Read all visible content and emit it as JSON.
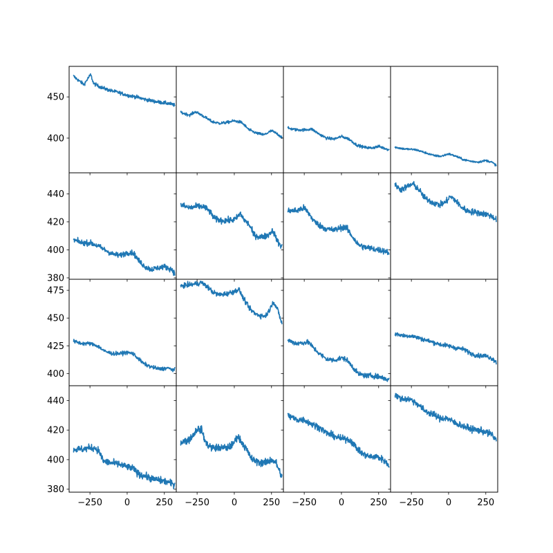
{
  "chart_data": {
    "type": "line",
    "layout": {
      "rows": 4,
      "cols": 4,
      "sharex": true,
      "sharey": "row"
    },
    "color": "#1f77b4",
    "xlim": [
      -390,
      330
    ],
    "xticks": [
      -250,
      0,
      250
    ],
    "xtick_labels": [
      "−250",
      "0",
      "250"
    ],
    "rows": [
      {
        "ylim": [
          358,
          487
        ],
        "yticks": [
          400,
          450
        ],
        "ytick_labels": [
          "400",
          "450"
        ]
      },
      {
        "ylim": [
          379,
          455
        ],
        "yticks": [
          380,
          400,
          420,
          440
        ],
        "ytick_labels": [
          "380",
          "400",
          "420",
          "440"
        ]
      },
      {
        "ylim": [
          389,
          485
        ],
        "yticks": [
          400,
          425,
          450,
          475
        ],
        "ytick_labels": [
          "400",
          "425",
          "450",
          "475"
        ]
      },
      {
        "ylim": [
          378,
          450
        ],
        "yticks": [
          380,
          400,
          420,
          440
        ],
        "ytick_labels": [
          "380",
          "400",
          "420",
          "440"
        ]
      }
    ],
    "panels": [
      {
        "row": 0,
        "col": 0,
        "noise": 1.5,
        "points": [
          [
            -360,
            475
          ],
          [
            -320,
            469
          ],
          [
            -290,
            465
          ],
          [
            -265,
            472
          ],
          [
            -245,
            477
          ],
          [
            -225,
            466
          ],
          [
            -180,
            462
          ],
          [
            -120,
            458
          ],
          [
            -50,
            455
          ],
          [
            0,
            452
          ],
          [
            60,
            450
          ],
          [
            120,
            447
          ],
          [
            200,
            444
          ],
          [
            280,
            442
          ],
          [
            320,
            440
          ]
        ]
      },
      {
        "row": 0,
        "col": 1,
        "noise": 1.2,
        "points": [
          [
            -360,
            431
          ],
          [
            -300,
            428
          ],
          [
            -260,
            432
          ],
          [
            -220,
            428
          ],
          [
            -150,
            420
          ],
          [
            -100,
            418
          ],
          [
            -50,
            419
          ],
          [
            0,
            421
          ],
          [
            50,
            419
          ],
          [
            100,
            410
          ],
          [
            150,
            406
          ],
          [
            200,
            404
          ],
          [
            250,
            409
          ],
          [
            290,
            405
          ],
          [
            320,
            401
          ]
        ]
      },
      {
        "row": 0,
        "col": 2,
        "noise": 1.2,
        "points": [
          [
            -360,
            412
          ],
          [
            -300,
            410
          ],
          [
            -250,
            410
          ],
          [
            -200,
            411
          ],
          [
            -150,
            405
          ],
          [
            -100,
            400
          ],
          [
            -50,
            399
          ],
          [
            0,
            402
          ],
          [
            50,
            399
          ],
          [
            100,
            392
          ],
          [
            150,
            389
          ],
          [
            200,
            388
          ],
          [
            250,
            390
          ],
          [
            320,
            386
          ]
        ]
      },
      {
        "row": 0,
        "col": 3,
        "noise": 0.9,
        "points": [
          [
            -360,
            389
          ],
          [
            -300,
            387
          ],
          [
            -220,
            386
          ],
          [
            -150,
            382
          ],
          [
            -100,
            379
          ],
          [
            -50,
            378
          ],
          [
            0,
            381
          ],
          [
            50,
            378
          ],
          [
            100,
            374
          ],
          [
            150,
            372
          ],
          [
            200,
            371
          ],
          [
            250,
            373
          ],
          [
            290,
            371
          ],
          [
            320,
            367
          ]
        ]
      },
      {
        "row": 1,
        "col": 0,
        "noise": 1.4,
        "points": [
          [
            -360,
            407
          ],
          [
            -300,
            405
          ],
          [
            -250,
            405
          ],
          [
            -200,
            403
          ],
          [
            -150,
            400
          ],
          [
            -100,
            397
          ],
          [
            -50,
            396
          ],
          [
            0,
            398
          ],
          [
            40,
            398
          ],
          [
            80,
            392
          ],
          [
            120,
            388
          ],
          [
            160,
            386
          ],
          [
            200,
            387
          ],
          [
            250,
            388
          ],
          [
            300,
            386
          ],
          [
            320,
            383
          ]
        ]
      },
      {
        "row": 1,
        "col": 1,
        "noise": 1.6,
        "points": [
          [
            -360,
            432
          ],
          [
            -300,
            430
          ],
          [
            -250,
            431
          ],
          [
            -210,
            431
          ],
          [
            -170,
            428
          ],
          [
            -130,
            422
          ],
          [
            -80,
            421
          ],
          [
            -30,
            421
          ],
          [
            10,
            422
          ],
          [
            40,
            426
          ],
          [
            70,
            421
          ],
          [
            100,
            418
          ],
          [
            130,
            411
          ],
          [
            170,
            409
          ],
          [
            220,
            410
          ],
          [
            260,
            414
          ],
          [
            290,
            406
          ],
          [
            320,
            402
          ]
        ]
      },
      {
        "row": 1,
        "col": 2,
        "noise": 1.6,
        "points": [
          [
            -360,
            428
          ],
          [
            -300,
            428
          ],
          [
            -250,
            430
          ],
          [
            -220,
            426
          ],
          [
            -180,
            420
          ],
          [
            -140,
            417
          ],
          [
            -100,
            415
          ],
          [
            -50,
            414
          ],
          [
            0,
            416
          ],
          [
            30,
            416
          ],
          [
            70,
            410
          ],
          [
            110,
            404
          ],
          [
            150,
            402
          ],
          [
            200,
            401
          ],
          [
            250,
            400
          ],
          [
            300,
            399
          ],
          [
            320,
            398
          ]
        ]
      },
      {
        "row": 1,
        "col": 3,
        "noise": 1.6,
        "points": [
          [
            -360,
            446
          ],
          [
            -320,
            443
          ],
          [
            -280,
            445
          ],
          [
            -240,
            447
          ],
          [
            -200,
            443
          ],
          [
            -160,
            437
          ],
          [
            -110,
            434
          ],
          [
            -60,
            432
          ],
          [
            -20,
            434
          ],
          [
            10,
            438
          ],
          [
            40,
            436
          ],
          [
            80,
            431
          ],
          [
            120,
            428
          ],
          [
            170,
            427
          ],
          [
            220,
            426
          ],
          [
            270,
            425
          ],
          [
            320,
            422
          ]
        ]
      },
      {
        "row": 2,
        "col": 0,
        "noise": 1.2,
        "points": [
          [
            -360,
            429
          ],
          [
            -300,
            427
          ],
          [
            -250,
            427
          ],
          [
            -200,
            425
          ],
          [
            -150,
            420
          ],
          [
            -100,
            418
          ],
          [
            -50,
            418
          ],
          [
            0,
            419
          ],
          [
            40,
            418
          ],
          [
            70,
            414
          ],
          [
            110,
            409
          ],
          [
            160,
            406
          ],
          [
            220,
            404
          ],
          [
            270,
            405
          ],
          [
            320,
            403
          ]
        ]
      },
      {
        "row": 2,
        "col": 1,
        "noise": 1.6,
        "points": [
          [
            -360,
            479
          ],
          [
            -300,
            480
          ],
          [
            -250,
            481
          ],
          [
            -220,
            482
          ],
          [
            -180,
            478
          ],
          [
            -140,
            473
          ],
          [
            -100,
            471
          ],
          [
            -50,
            472
          ],
          [
            0,
            474
          ],
          [
            30,
            476
          ],
          [
            60,
            468
          ],
          [
            100,
            459
          ],
          [
            140,
            454
          ],
          [
            180,
            452
          ],
          [
            210,
            452
          ],
          [
            240,
            458
          ],
          [
            260,
            465
          ],
          [
            290,
            458
          ],
          [
            320,
            445
          ]
        ]
      },
      {
        "row": 2,
        "col": 2,
        "noise": 1.6,
        "points": [
          [
            -360,
            430
          ],
          [
            -300,
            427
          ],
          [
            -250,
            428
          ],
          [
            -220,
            428
          ],
          [
            -180,
            422
          ],
          [
            -140,
            417
          ],
          [
            -100,
            413
          ],
          [
            -50,
            412
          ],
          [
            0,
            414
          ],
          [
            30,
            413
          ],
          [
            70,
            407
          ],
          [
            110,
            400
          ],
          [
            160,
            398
          ],
          [
            210,
            398
          ],
          [
            260,
            397
          ],
          [
            320,
            394
          ]
        ]
      },
      {
        "row": 2,
        "col": 3,
        "noise": 1.4,
        "points": [
          [
            -360,
            436
          ],
          [
            -300,
            434
          ],
          [
            -250,
            434
          ],
          [
            -200,
            432
          ],
          [
            -150,
            430
          ],
          [
            -100,
            428
          ],
          [
            -50,
            426
          ],
          [
            0,
            425
          ],
          [
            50,
            423
          ],
          [
            100,
            422
          ],
          [
            150,
            418
          ],
          [
            200,
            416
          ],
          [
            250,
            416
          ],
          [
            300,
            413
          ],
          [
            320,
            410
          ]
        ]
      },
      {
        "row": 3,
        "col": 0,
        "noise": 1.7,
        "points": [
          [
            -360,
            407
          ],
          [
            -300,
            407
          ],
          [
            -250,
            408
          ],
          [
            -220,
            408
          ],
          [
            -190,
            406
          ],
          [
            -160,
            399
          ],
          [
            -120,
            398
          ],
          [
            -60,
            397
          ],
          [
            0,
            395
          ],
          [
            40,
            394
          ],
          [
            80,
            390
          ],
          [
            120,
            389
          ],
          [
            170,
            387
          ],
          [
            220,
            386
          ],
          [
            270,
            385
          ],
          [
            320,
            383
          ]
        ]
      },
      {
        "row": 3,
        "col": 1,
        "noise": 1.8,
        "points": [
          [
            -360,
            412
          ],
          [
            -310,
            413
          ],
          [
            -280,
            416
          ],
          [
            -250,
            421
          ],
          [
            -220,
            420
          ],
          [
            -190,
            411
          ],
          [
            -150,
            408
          ],
          [
            -100,
            408
          ],
          [
            -50,
            408
          ],
          [
            -10,
            410
          ],
          [
            20,
            416
          ],
          [
            50,
            412
          ],
          [
            80,
            407
          ],
          [
            120,
            400
          ],
          [
            170,
            398
          ],
          [
            210,
            398
          ],
          [
            250,
            400
          ],
          [
            280,
            398
          ],
          [
            320,
            388
          ]
        ]
      },
      {
        "row": 3,
        "col": 2,
        "noise": 1.6,
        "points": [
          [
            -360,
            430
          ],
          [
            -300,
            427
          ],
          [
            -250,
            427
          ],
          [
            -200,
            424
          ],
          [
            -150,
            422
          ],
          [
            -100,
            418
          ],
          [
            -50,
            416
          ],
          [
            0,
            414
          ],
          [
            40,
            414
          ],
          [
            70,
            412
          ],
          [
            100,
            408
          ],
          [
            140,
            404
          ],
          [
            190,
            402
          ],
          [
            240,
            402
          ],
          [
            280,
            400
          ],
          [
            320,
            396
          ]
        ]
      },
      {
        "row": 3,
        "col": 3,
        "noise": 1.6,
        "points": [
          [
            -360,
            444
          ],
          [
            -320,
            441
          ],
          [
            -270,
            441
          ],
          [
            -240,
            440
          ],
          [
            -200,
            437
          ],
          [
            -160,
            433
          ],
          [
            -110,
            431
          ],
          [
            -60,
            428
          ],
          [
            -10,
            428
          ],
          [
            40,
            425
          ],
          [
            90,
            423
          ],
          [
            140,
            421
          ],
          [
            190,
            420
          ],
          [
            240,
            419
          ],
          [
            290,
            417
          ],
          [
            320,
            413
          ]
        ]
      }
    ]
  }
}
